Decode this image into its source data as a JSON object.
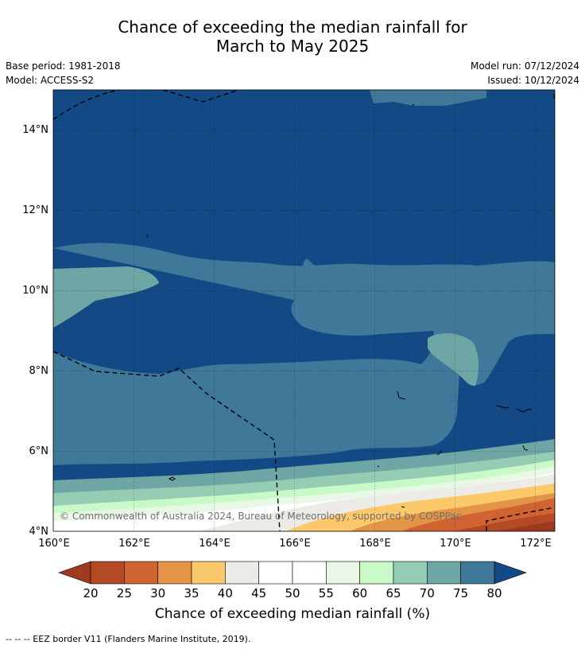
{
  "header": {
    "title_line1": "Chance of exceeding the median rainfall for",
    "title_line2": "March to May 2025",
    "base_period": "Base period: 1981-2018",
    "model": "Model: ACCESS-S2",
    "model_run": "Model run: 07/12/2024",
    "issued": "Issued: 10/12/2024"
  },
  "map": {
    "lat_ticks": [
      "4°N",
      "6°N",
      "8°N",
      "10°N",
      "12°N",
      "14°N"
    ],
    "lon_ticks": [
      "160°E",
      "162°E",
      "164°E",
      "166°E",
      "168°E",
      "170°E",
      "172°E"
    ],
    "copyright": "© Commonwealth of Australia 2024, Bureau of Meteorology, supported by COSPPac"
  },
  "colorbar": {
    "ticks": [
      "20",
      "25",
      "30",
      "35",
      "40",
      "45",
      "50",
      "55",
      "60",
      "65",
      "70",
      "75",
      "80"
    ],
    "label": "Chance of exceeding median rainfall (%)",
    "colors": {
      "lt20": "#9e3a1f",
      "20-25": "#b34a25",
      "25-30": "#cf6432",
      "30-35": "#e49447",
      "35-40": "#fcc96a",
      "40-45": "#edebe6",
      "45-50": "#ffffff",
      "50-55": "#ffffff",
      "55-60": "#e8f7e6",
      "60-65": "#c8fac8",
      "65-70": "#96ccb4",
      "70-75": "#6ea5a5",
      "75-80": "#3f7898",
      "gt80": "#134a86"
    }
  },
  "footnote": "--  --  -- EEZ border V11 (Flanders Marine Institute, 2019)."
}
